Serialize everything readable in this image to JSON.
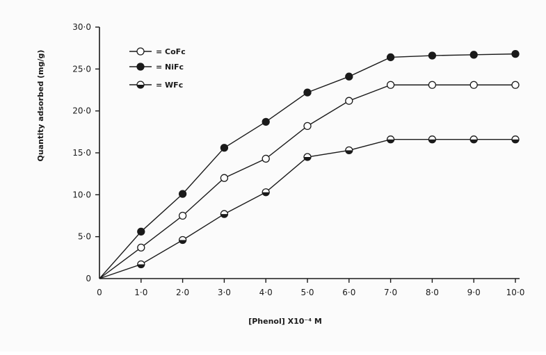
{
  "chart_data": {
    "type": "line",
    "xlabel": "[Phenol] X10⁻⁴ M",
    "ylabel": "Quantity adsorbed (mg/g)",
    "xlim": [
      0,
      10
    ],
    "ylim": [
      0,
      30
    ],
    "x": [
      0,
      1,
      2,
      3,
      4,
      5,
      6,
      7,
      8,
      9,
      10
    ],
    "x_tick_labels": [
      "0",
      "1·0",
      "2·0",
      "3·0",
      "4·0",
      "5·0",
      "6·0",
      "7·0",
      "8·0",
      "9·0",
      "10·0"
    ],
    "y_ticks": [
      0,
      5,
      10,
      15,
      20,
      25,
      30
    ],
    "y_tick_labels": [
      "0",
      "5·0",
      "10·0",
      "15·0",
      "20·0",
      "25·0",
      "30·0"
    ],
    "grid": false,
    "legend_position": "top-left",
    "series": [
      {
        "name": "= CoFc",
        "marker": "open-circle",
        "values": [
          0,
          3.7,
          7.5,
          12.0,
          14.3,
          18.2,
          21.2,
          23.1,
          23.1,
          23.1,
          23.1
        ]
      },
      {
        "name": "= NiFc",
        "marker": "filled-circle",
        "values": [
          0,
          5.6,
          10.1,
          15.6,
          18.7,
          22.2,
          24.1,
          26.4,
          26.6,
          26.7,
          26.8
        ]
      },
      {
        "name": "= WFc",
        "marker": "half-filled-circle",
        "values": [
          0,
          1.7,
          4.6,
          7.7,
          10.3,
          14.5,
          15.3,
          16.6,
          16.6,
          16.6,
          16.6
        ]
      }
    ]
  }
}
